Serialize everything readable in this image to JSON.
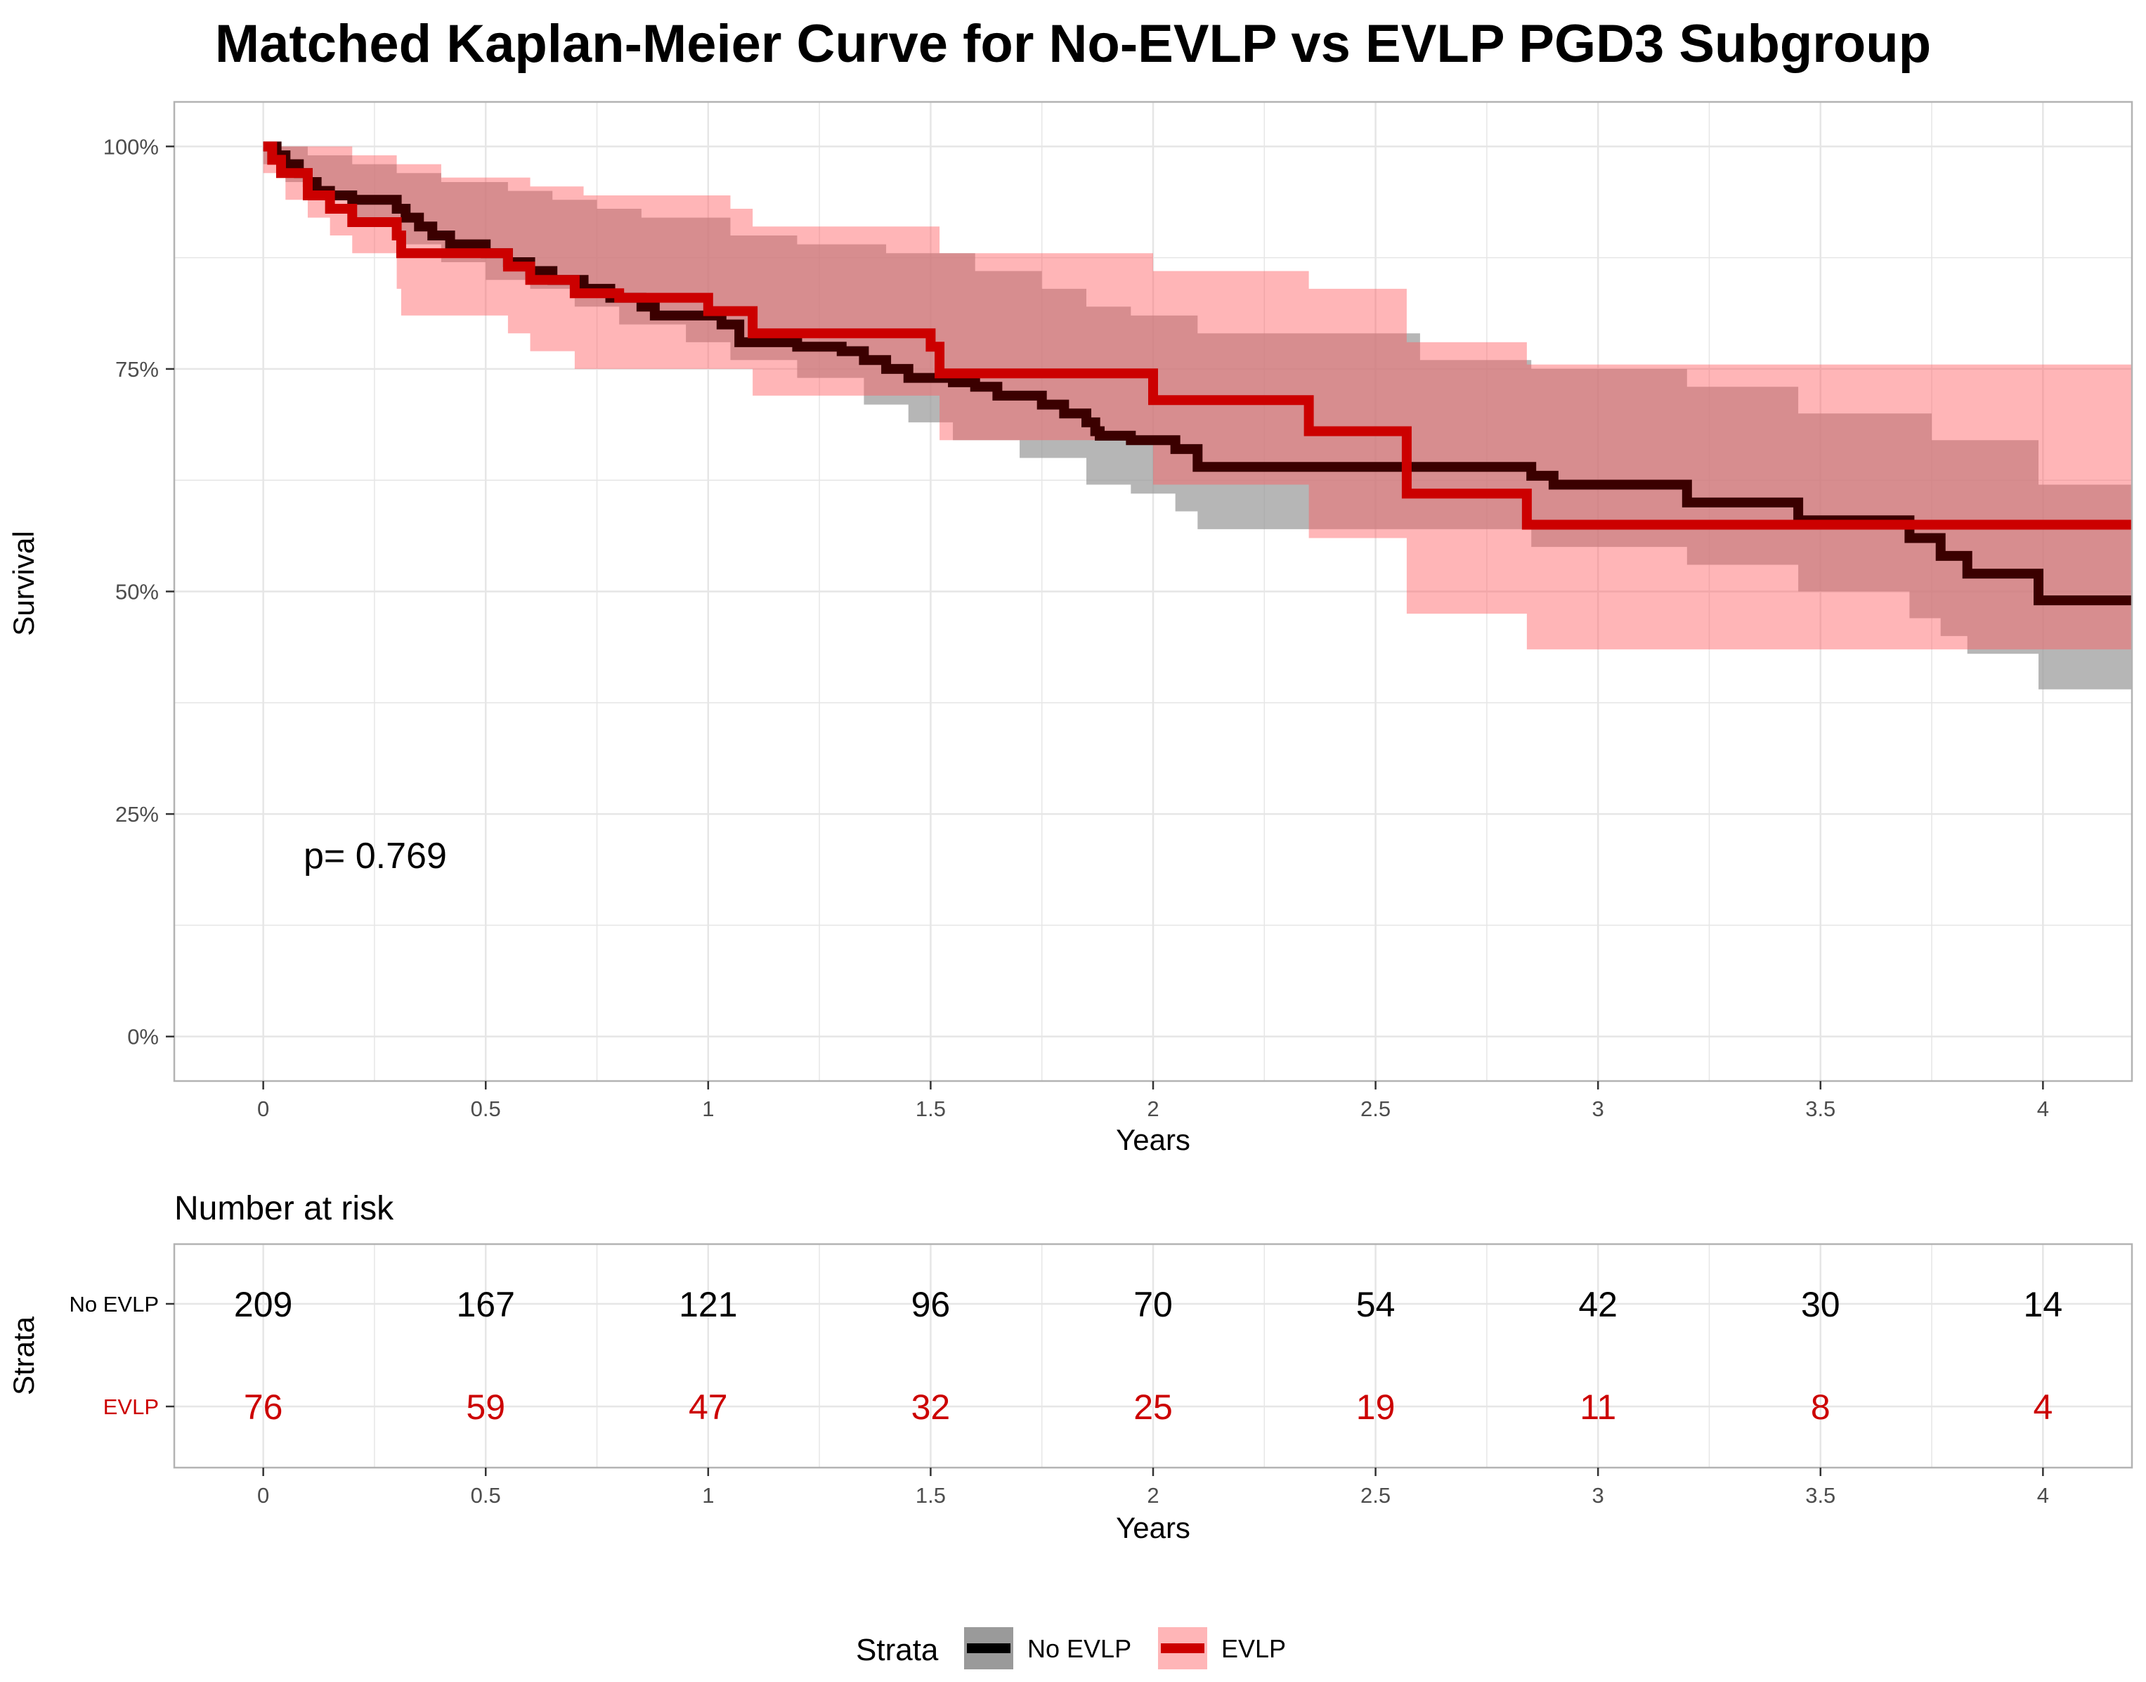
{
  "colors": {
    "no_evlp_line": "#3b0000",
    "no_evlp_band": "#9a9a9a",
    "evlp_line": "#cc0000",
    "evlp_band": "#ff5a5f",
    "grid": "#e6e6e6",
    "panel_border": "#b3b3b3",
    "risk_evlp_text": "#cc0000",
    "risk_no_evlp_text": "#000000"
  },
  "chart_data": [
    {
      "type": "line",
      "step": true,
      "title": "Matched Kaplan-Meier Curve for No-EVLP vs EVLP PGD3 Subgroup",
      "xlabel": "Years",
      "ylabel": "Survival",
      "xlim": [
        -0.2,
        4.2
      ],
      "ylim": [
        -0.05,
        1.05
      ],
      "x_ticks": [
        0,
        0.5,
        1,
        1.5,
        2,
        2.5,
        3,
        3.5,
        4
      ],
      "x_tick_labels": [
        "0",
        "0.5",
        "1",
        "1.5",
        "2",
        "2.5",
        "3",
        "3.5",
        "4"
      ],
      "y_ticks": [
        0,
        0.25,
        0.5,
        0.75,
        1
      ],
      "y_tick_labels": [
        "0%",
        "25%",
        "50%",
        "75%",
        "100%"
      ],
      "grid": true,
      "annotation": "p= 0.769",
      "legend": {
        "title": "Strata",
        "position": "bottom",
        "entries": [
          "No EVLP",
          "EVLP"
        ]
      },
      "series": [
        {
          "name": "No EVLP",
          "points": [
            [
              0,
              1.0
            ],
            [
              0.03,
              0.99
            ],
            [
              0.05,
              0.98
            ],
            [
              0.08,
              0.97
            ],
            [
              0.1,
              0.96
            ],
            [
              0.12,
              0.95
            ],
            [
              0.15,
              0.945
            ],
            [
              0.2,
              0.94
            ],
            [
              0.3,
              0.93
            ],
            [
              0.32,
              0.92
            ],
            [
              0.35,
              0.91
            ],
            [
              0.38,
              0.9
            ],
            [
              0.42,
              0.89
            ],
            [
              0.5,
              0.88
            ],
            [
              0.55,
              0.87
            ],
            [
              0.6,
              0.86
            ],
            [
              0.65,
              0.85
            ],
            [
              0.72,
              0.84
            ],
            [
              0.78,
              0.83
            ],
            [
              0.85,
              0.82
            ],
            [
              0.88,
              0.81
            ],
            [
              1.03,
              0.8
            ],
            [
              1.07,
              0.78
            ],
            [
              1.2,
              0.775
            ],
            [
              1.3,
              0.77
            ],
            [
              1.35,
              0.76
            ],
            [
              1.4,
              0.75
            ],
            [
              1.45,
              0.74
            ],
            [
              1.55,
              0.735
            ],
            [
              1.6,
              0.73
            ],
            [
              1.65,
              0.72
            ],
            [
              1.75,
              0.71
            ],
            [
              1.8,
              0.7
            ],
            [
              1.85,
              0.69
            ],
            [
              1.87,
              0.68
            ],
            [
              1.88,
              0.675
            ],
            [
              1.95,
              0.67
            ],
            [
              2.05,
              0.66
            ],
            [
              2.1,
              0.64
            ],
            [
              2.85,
              0.63
            ],
            [
              2.9,
              0.62
            ],
            [
              3.2,
              0.6
            ],
            [
              3.45,
              0.58
            ],
            [
              3.7,
              0.56
            ],
            [
              3.77,
              0.54
            ],
            [
              3.83,
              0.52
            ],
            [
              3.99,
              0.49
            ],
            [
              4.2,
              0.49
            ]
          ],
          "ci_upper": [
            [
              0,
              1.0
            ],
            [
              0.05,
              1.0
            ],
            [
              0.1,
              0.99
            ],
            [
              0.2,
              0.98
            ],
            [
              0.3,
              0.97
            ],
            [
              0.4,
              0.96
            ],
            [
              0.55,
              0.95
            ],
            [
              0.65,
              0.94
            ],
            [
              0.75,
              0.93
            ],
            [
              0.85,
              0.92
            ],
            [
              1.05,
              0.9
            ],
            [
              1.2,
              0.89
            ],
            [
              1.4,
              0.88
            ],
            [
              1.6,
              0.86
            ],
            [
              1.75,
              0.84
            ],
            [
              1.85,
              0.82
            ],
            [
              1.95,
              0.81
            ],
            [
              2.1,
              0.79
            ],
            [
              2.6,
              0.76
            ],
            [
              2.85,
              0.75
            ],
            [
              3.2,
              0.73
            ],
            [
              3.45,
              0.7
            ],
            [
              3.75,
              0.67
            ],
            [
              3.99,
              0.62
            ],
            [
              4.2,
              0.62
            ]
          ],
          "ci_lower": [
            [
              0,
              0.98
            ],
            [
              0.05,
              0.96
            ],
            [
              0.1,
              0.94
            ],
            [
              0.2,
              0.91
            ],
            [
              0.3,
              0.89
            ],
            [
              0.4,
              0.87
            ],
            [
              0.5,
              0.85
            ],
            [
              0.6,
              0.84
            ],
            [
              0.7,
              0.82
            ],
            [
              0.8,
              0.8
            ],
            [
              0.95,
              0.78
            ],
            [
              1.05,
              0.76
            ],
            [
              1.2,
              0.74
            ],
            [
              1.35,
              0.71
            ],
            [
              1.45,
              0.69
            ],
            [
              1.55,
              0.67
            ],
            [
              1.7,
              0.65
            ],
            [
              1.85,
              0.62
            ],
            [
              1.95,
              0.61
            ],
            [
              2.05,
              0.59
            ],
            [
              2.1,
              0.57
            ],
            [
              2.85,
              0.55
            ],
            [
              3.2,
              0.53
            ],
            [
              3.45,
              0.5
            ],
            [
              3.7,
              0.47
            ],
            [
              3.77,
              0.45
            ],
            [
              3.83,
              0.43
            ],
            [
              3.99,
              0.39
            ],
            [
              4.2,
              0.39
            ]
          ]
        },
        {
          "name": "EVLP",
          "points": [
            [
              0,
              1.0
            ],
            [
              0.02,
              0.985
            ],
            [
              0.04,
              0.97
            ],
            [
              0.1,
              0.945
            ],
            [
              0.15,
              0.93
            ],
            [
              0.2,
              0.915
            ],
            [
              0.3,
              0.9
            ],
            [
              0.31,
              0.88
            ],
            [
              0.55,
              0.865
            ],
            [
              0.6,
              0.85
            ],
            [
              0.7,
              0.835
            ],
            [
              0.8,
              0.83
            ],
            [
              1.0,
              0.815
            ],
            [
              1.1,
              0.79
            ],
            [
              1.5,
              0.775
            ],
            [
              1.52,
              0.745
            ],
            [
              2.0,
              0.715
            ],
            [
              2.35,
              0.68
            ],
            [
              2.57,
              0.61
            ],
            [
              2.84,
              0.575
            ],
            [
              4.2,
              0.575
            ]
          ],
          "ci_upper": [
            [
              0,
              1.0
            ],
            [
              0.2,
              0.99
            ],
            [
              0.3,
              0.98
            ],
            [
              0.4,
              0.965
            ],
            [
              0.6,
              0.955
            ],
            [
              0.72,
              0.945
            ],
            [
              1.05,
              0.93
            ],
            [
              1.1,
              0.91
            ],
            [
              1.52,
              0.88
            ],
            [
              2.0,
              0.86
            ],
            [
              2.35,
              0.84
            ],
            [
              2.57,
              0.78
            ],
            [
              2.84,
              0.755
            ],
            [
              4.2,
              0.755
            ]
          ],
          "ci_lower": [
            [
              0,
              0.97
            ],
            [
              0.05,
              0.94
            ],
            [
              0.1,
              0.92
            ],
            [
              0.15,
              0.9
            ],
            [
              0.2,
              0.88
            ],
            [
              0.3,
              0.84
            ],
            [
              0.31,
              0.81
            ],
            [
              0.55,
              0.79
            ],
            [
              0.6,
              0.77
            ],
            [
              0.7,
              0.75
            ],
            [
              1.1,
              0.72
            ],
            [
              1.52,
              0.67
            ],
            [
              2.0,
              0.62
            ],
            [
              2.35,
              0.56
            ],
            [
              2.57,
              0.475
            ],
            [
              2.84,
              0.435
            ],
            [
              4.2,
              0.435
            ]
          ]
        }
      ]
    },
    {
      "type": "table",
      "title": "Number at risk",
      "xlabel": "Years",
      "ylabel": "Strata",
      "x": [
        0,
        0.5,
        1,
        1.5,
        2,
        2.5,
        3,
        3.5,
        4
      ],
      "x_tick_labels": [
        "0",
        "0.5",
        "1",
        "1.5",
        "2",
        "2.5",
        "3",
        "3.5",
        "4"
      ],
      "rows": [
        {
          "name": "No EVLP",
          "values": [
            "209",
            "167",
            "121",
            "96",
            "70",
            "54",
            "42",
            "30",
            "14"
          ]
        },
        {
          "name": "EVLP",
          "values": [
            "76",
            "59",
            "47",
            "32",
            "25",
            "19",
            "11",
            "8",
            "4"
          ]
        }
      ]
    }
  ]
}
